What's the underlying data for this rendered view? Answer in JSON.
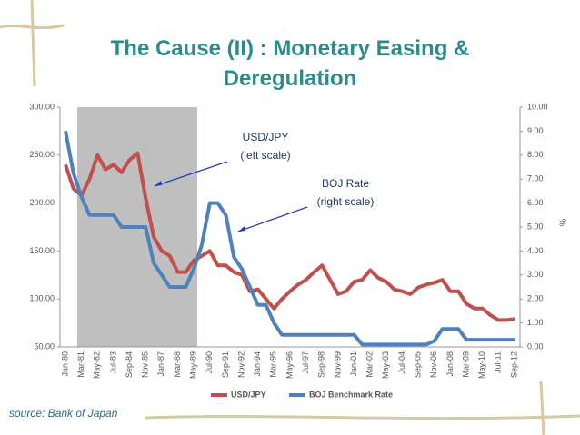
{
  "chart_data": {
    "type": "line",
    "title": "The Cause (II) : Monetary Easing & Deregulation",
    "categories": [
      "Jan-80",
      null,
      "Mar-81",
      null,
      "May-82",
      null,
      "Jul-83",
      null,
      "Sep-84",
      null,
      "Nov-85",
      null,
      "Jan-87",
      null,
      "Mar-88",
      null,
      "May-89",
      null,
      "Jul-90",
      null,
      "Sep-91",
      null,
      "Nov-92",
      null,
      "Jan-94",
      null,
      "Mar-95",
      null,
      "May-96",
      null,
      "Jul-97",
      null,
      "Sep-98",
      null,
      "Nov-99",
      null,
      "Jan-01",
      null,
      "Mar-02",
      null,
      "May-03",
      null,
      "Jul-04",
      null,
      "Sep-05",
      null,
      "Nov-06",
      null,
      "Jan-08",
      null,
      "Mar-09",
      null,
      "May-10",
      null,
      "Jul-11",
      null,
      "Sep-12"
    ],
    "series": [
      {
        "name": "USD/JPY",
        "color": "#c0504d",
        "axis": "y",
        "values": [
          240,
          215,
          208,
          225,
          250,
          235,
          240,
          232,
          245,
          252,
          205,
          165,
          150,
          145,
          128,
          128,
          140,
          145,
          150,
          135,
          135,
          128,
          125,
          108,
          110,
          100,
          90,
          100,
          108,
          115,
          120,
          128,
          135,
          120,
          105,
          108,
          118,
          120,
          130,
          122,
          118,
          110,
          108,
          105,
          112,
          115,
          117,
          120,
          108,
          108,
          95,
          90,
          90,
          83,
          78,
          78,
          79
        ]
      },
      {
        "name": "BOJ Benchmark Rate",
        "color": "#4f81bd",
        "axis": "y2",
        "values": [
          9.0,
          7.25,
          6.25,
          5.5,
          5.5,
          5.5,
          5.5,
          5.0,
          5.0,
          5.0,
          5.0,
          3.5,
          3.0,
          2.5,
          2.5,
          2.5,
          3.25,
          4.25,
          6.0,
          6.0,
          5.5,
          3.75,
          3.25,
          2.5,
          1.75,
          1.75,
          1.0,
          0.5,
          0.5,
          0.5,
          0.5,
          0.5,
          0.5,
          0.5,
          0.5,
          0.5,
          0.5,
          0.1,
          0.1,
          0.1,
          0.1,
          0.1,
          0.1,
          0.1,
          0.1,
          0.1,
          0.25,
          0.75,
          0.75,
          0.75,
          0.3,
          0.3,
          0.3,
          0.3,
          0.3,
          0.3,
          0.3
        ]
      }
    ],
    "ylim": [
      50,
      300
    ],
    "yticks": [
      {
        "value": 50,
        "label": "50.00"
      },
      {
        "value": 100,
        "label": "100.00"
      },
      {
        "value": 150,
        "label": "150.00"
      },
      {
        "value": 200,
        "label": "200.00"
      },
      {
        "value": 250,
        "label": "250.00"
      },
      {
        "value": 300,
        "label": "300.00"
      }
    ],
    "y2lim": [
      0,
      10
    ],
    "y2ticks": [
      {
        "value": 0,
        "label": "0.00"
      },
      {
        "value": 1,
        "label": "1.00"
      },
      {
        "value": 2,
        "label": "2.00"
      },
      {
        "value": 3,
        "label": "3.00"
      },
      {
        "value": 4,
        "label": "4.00"
      },
      {
        "value": 5,
        "label": "5.00"
      },
      {
        "value": 6,
        "label": "6.00"
      },
      {
        "value": 7,
        "label": "7.00"
      },
      {
        "value": 8,
        "label": "8.00"
      },
      {
        "value": 9,
        "label": "9.00"
      },
      {
        "value": 10,
        "label": "10.00"
      }
    ],
    "y2label": "%",
    "annotations": [
      [
        "USD/JPY",
        "(left scale)"
      ],
      [
        "BOJ Rate",
        "(right scale)"
      ]
    ],
    "source": "source: Bank of Japan",
    "legend": "bottom"
  }
}
